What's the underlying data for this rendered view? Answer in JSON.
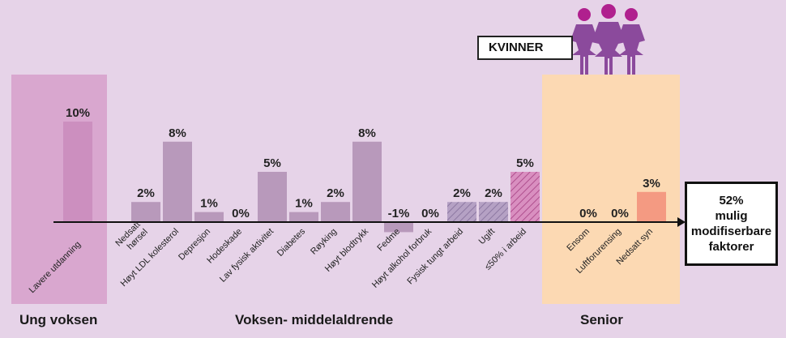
{
  "chart_data": {
    "type": "bar",
    "categories": [
      "Lavere utdanning",
      "Nedsatt hørsel",
      "Høyt LDL kolesterol",
      "Depresjon",
      "Hodeskade",
      "Lav fysisk aktivitet",
      "Diabetes",
      "Røyking",
      "Høyt blodtrykk",
      "Fedme",
      "Høyt alkohol forbruk",
      "Fysisk tungt arbeid",
      "Ugift",
      "≤50% i arbeid",
      "Ensom",
      "Luftforurensing",
      "Nedsatt syn"
    ],
    "category_lines": [
      [
        "Lavere utdanning"
      ],
      [
        "Nedsatt",
        "hørsel"
      ],
      [
        "Høyt LDL kolesterol"
      ],
      [
        "Depresjon"
      ],
      [
        "Hodeskade"
      ],
      [
        "Lav fysisk aktivitet"
      ],
      [
        "Diabetes"
      ],
      [
        "Røyking"
      ],
      [
        "Høyt blodtrykk"
      ],
      [
        "Fedme"
      ],
      [
        "Høyt alkohol forbruk"
      ],
      [
        "Fysisk tungt arbeid"
      ],
      [
        "Ugift"
      ],
      [
        "≤50% i arbeid"
      ],
      [
        "Ensom"
      ],
      [
        "Luftforurensing"
      ],
      [
        "Nedsatt syn"
      ]
    ],
    "values": [
      10,
      2,
      8,
      1,
      0,
      5,
      1,
      2,
      8,
      -1,
      0,
      2,
      2,
      5,
      0,
      0,
      3
    ],
    "value_labels": [
      "10%",
      "2%",
      "8%",
      "1%",
      "0%",
      "5%",
      "1%",
      "2%",
      "8%",
      "-1%",
      "0%",
      "2%",
      "2%",
      "5%",
      "0%",
      "0%",
      "3%"
    ],
    "styles": [
      "solid",
      "solid",
      "solid",
      "solid",
      "solid",
      "solid",
      "solid",
      "solid",
      "solid",
      "solid",
      "solid",
      "hatched",
      "hatched",
      "hatched-pink",
      "solid",
      "solid",
      "orange"
    ],
    "groups": [
      {
        "name": "Ung voksen",
        "categories": [
          "Lavere utdanning"
        ]
      },
      {
        "name": "Voksen- middelaldrende",
        "categories": [
          "Nedsatt hørsel",
          "Høyt LDL kolesterol",
          "Depresjon",
          "Hodeskade",
          "Lav fysisk aktivitet",
          "Diabetes",
          "Røyking",
          "Høyt blodtrykk",
          "Fedme",
          "Høyt alkohol forbruk",
          "Fysisk tungt arbeid",
          "Ugift",
          "≤50% i arbeid"
        ]
      },
      {
        "name": "Senior",
        "categories": [
          "Ensom",
          "Luftforurensing",
          "Nedsatt syn"
        ]
      }
    ],
    "ylim": [
      -1,
      10
    ],
    "grid": false,
    "legend": "none"
  },
  "colors": {
    "background": "#e6d3e8",
    "young_panel": "#d9a7cf",
    "senior_panel": "#fcd9b3",
    "bar_young": "#cc8fbf",
    "bar_mid": "#b899bb",
    "bar_hatch_base": "#b5a1c4",
    "bar_hatch_pink": "#d98fc0",
    "bar_senior": "#f49a82",
    "women_icon": "#8b4a9c",
    "women_head": "#b0208e"
  },
  "icons": [
    "women-group-icon"
  ],
  "labels": {
    "young": "Ung voksen",
    "middle": "Voksen- middelaldrende",
    "senior": "Senior",
    "kvinner": "KVINNER",
    "summary": "52%\nmulig\nmodifiserbare\nfaktorer"
  }
}
